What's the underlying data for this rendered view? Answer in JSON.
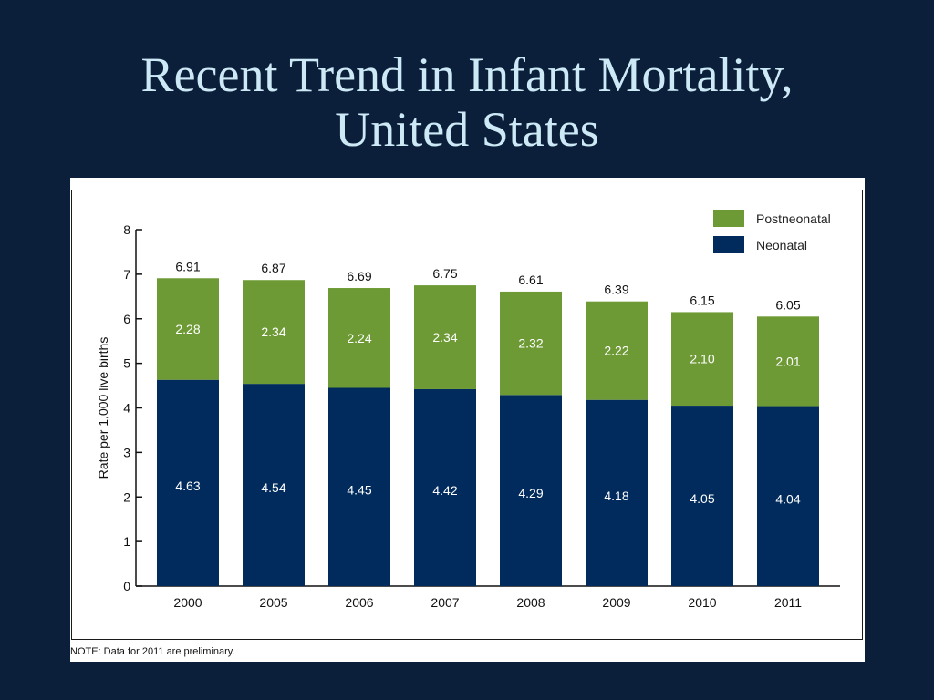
{
  "slide": {
    "title_line1": "Recent Trend in Infant Mortality,",
    "title_line2": "United States"
  },
  "note": "NOTE: Data for 2011 are preliminary.",
  "colors": {
    "background": "#0b1f3a",
    "title": "#cde9f6",
    "neonatal": "#002b5c",
    "postneonatal": "#6d9a35"
  },
  "chart_data": {
    "type": "bar",
    "stacked": true,
    "categories": [
      "2000",
      "2005",
      "2006",
      "2007",
      "2008",
      "2009",
      "2010",
      "2011"
    ],
    "series": [
      {
        "name": "Neonatal",
        "values": [
          4.63,
          4.54,
          4.45,
          4.42,
          4.29,
          4.18,
          4.05,
          4.04
        ]
      },
      {
        "name": "Postneonatal",
        "values": [
          2.28,
          2.34,
          2.24,
          2.34,
          2.32,
          2.22,
          2.1,
          2.01
        ]
      }
    ],
    "totals": [
      6.91,
      6.87,
      6.69,
      6.75,
      6.61,
      6.39,
      6.15,
      6.05
    ],
    "ylabel": "Rate per 1,000 live births",
    "ylim": [
      0,
      8
    ],
    "yticks": [
      "0",
      "1",
      "2",
      "3",
      "4",
      "5",
      "6",
      "7",
      "8"
    ],
    "legend": [
      "Postneonatal",
      "Neonatal"
    ],
    "legend_position": "top-right",
    "grid": false
  }
}
